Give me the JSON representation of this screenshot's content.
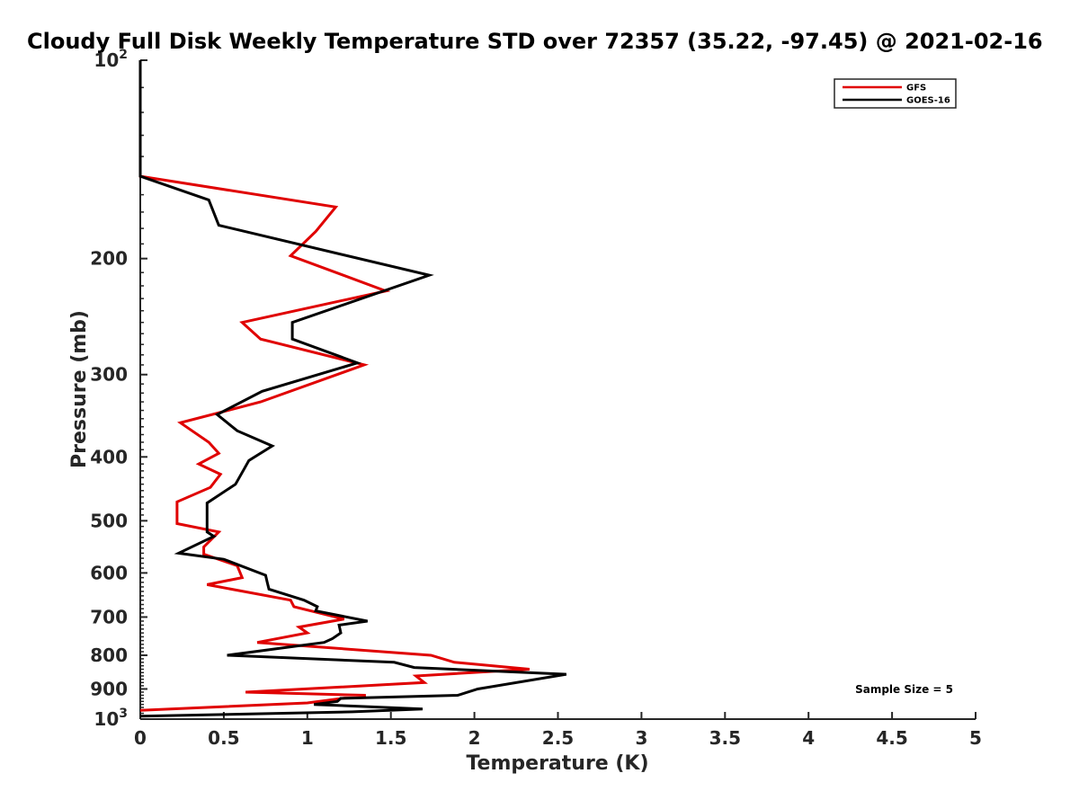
{
  "chart_data": {
    "type": "line",
    "title": "Cloudy Full Disk Weekly Temperature STD over 72357 (35.22, -97.45) @ 2021-02-16",
    "xlabel": "Temperature (K)",
    "ylabel": "Pressure (mb)",
    "xlim": [
      0,
      5
    ],
    "ylim": [
      100,
      1000
    ],
    "y_scale": "log",
    "y_reversed": true,
    "grid": false,
    "legend_position": "top-right",
    "x_ticks": [
      "0",
      "0.5",
      "1",
      "1.5",
      "2",
      "2.5",
      "3",
      "3.5",
      "4",
      "4.5",
      "5"
    ],
    "y_ticks": [
      {
        "value": 100,
        "base": "10",
        "exp": "2"
      },
      {
        "value": 200,
        "label": "200"
      },
      {
        "value": 300,
        "label": "300"
      },
      {
        "value": 400,
        "label": "400"
      },
      {
        "value": 500,
        "label": "500"
      },
      {
        "value": 600,
        "label": "600"
      },
      {
        "value": 700,
        "label": "700"
      },
      {
        "value": 800,
        "label": "800"
      },
      {
        "value": 900,
        "label": "900"
      },
      {
        "value": 1000,
        "base": "10",
        "exp": "3"
      }
    ],
    "annotation": "Sample Size = 5",
    "series": [
      {
        "name": "GFS",
        "color": "#e00000",
        "points": [
          [
            0,
            100
          ],
          [
            0,
            150
          ],
          [
            1.17,
            167
          ],
          [
            1.05,
            182
          ],
          [
            0.9,
            198
          ],
          [
            1.47,
            224
          ],
          [
            0.61,
            250
          ],
          [
            0.72,
            265
          ],
          [
            1.34,
            290
          ],
          [
            0.72,
            330
          ],
          [
            0.24,
            355
          ],
          [
            0.41,
            380
          ],
          [
            0.47,
            395
          ],
          [
            0.35,
            410
          ],
          [
            0.48,
            425
          ],
          [
            0.42,
            445
          ],
          [
            0.22,
            468
          ],
          [
            0.22,
            505
          ],
          [
            0.47,
            520
          ],
          [
            0.38,
            548
          ],
          [
            0.38,
            562
          ],
          [
            0.58,
            585
          ],
          [
            0.61,
            610
          ],
          [
            0.4,
            625
          ],
          [
            0.9,
            660
          ],
          [
            0.92,
            675
          ],
          [
            1.22,
            705
          ],
          [
            0.95,
            725
          ],
          [
            1.0,
            740
          ],
          [
            0.7,
            765
          ],
          [
            1.74,
            800
          ],
          [
            1.88,
            820
          ],
          [
            2.33,
            840
          ],
          [
            1.65,
            860
          ],
          [
            1.7,
            880
          ],
          [
            0.63,
            910
          ],
          [
            1.35,
            920
          ],
          [
            1.0,
            945
          ],
          [
            0,
            970
          ]
        ]
      },
      {
        "name": "GOES-16",
        "color": "#000000",
        "points": [
          [
            0,
            100
          ],
          [
            0,
            150
          ],
          [
            0.41,
            163
          ],
          [
            0.47,
            178
          ],
          [
            1.73,
            212
          ],
          [
            0.91,
            250
          ],
          [
            0.91,
            265
          ],
          [
            1.3,
            288
          ],
          [
            0.73,
            318
          ],
          [
            0.46,
            345
          ],
          [
            0.58,
            365
          ],
          [
            0.79,
            385
          ],
          [
            0.65,
            405
          ],
          [
            0.62,
            418
          ],
          [
            0.57,
            440
          ],
          [
            0.4,
            470
          ],
          [
            0.4,
            520
          ],
          [
            0.44,
            528
          ],
          [
            0.23,
            560
          ],
          [
            0.5,
            572
          ],
          [
            0.75,
            605
          ],
          [
            0.76,
            620
          ],
          [
            0.77,
            635
          ],
          [
            0.98,
            660
          ],
          [
            1.06,
            675
          ],
          [
            1.05,
            685
          ],
          [
            1.36,
            710
          ],
          [
            1.19,
            720
          ],
          [
            1.2,
            740
          ],
          [
            1.15,
            755
          ],
          [
            1.1,
            765
          ],
          [
            0.52,
            800
          ],
          [
            1.52,
            820
          ],
          [
            1.64,
            835
          ],
          [
            2.55,
            855
          ],
          [
            2.02,
            900
          ],
          [
            1.9,
            920
          ],
          [
            1.2,
            930
          ],
          [
            1.18,
            940
          ],
          [
            1.04,
            950
          ],
          [
            1.69,
            965
          ],
          [
            1.27,
            975
          ],
          [
            0,
            990
          ]
        ]
      }
    ]
  }
}
